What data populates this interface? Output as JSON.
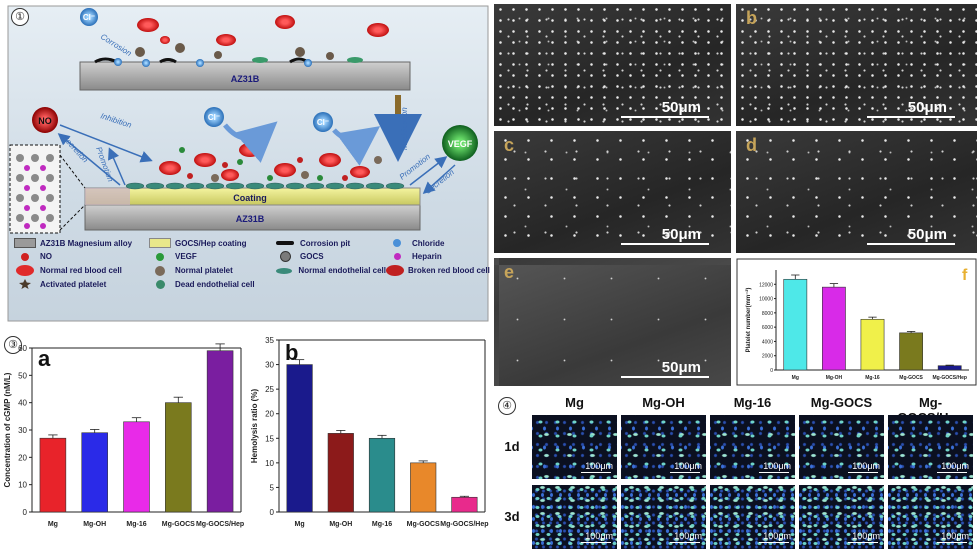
{
  "panel1": {
    "number": "①",
    "substrate_top": "AZ31B",
    "substrate_bottom": "AZ31B",
    "coating": "Coating",
    "ions": {
      "cl": "Cl⁻",
      "no": "NO",
      "vegf": "VEGF"
    },
    "arrows": {
      "corrosion": "Corrosion",
      "inhibition": "Inhibition",
      "secretion_left": "Secretion",
      "promotion_left": "Promotion",
      "modification": "Modification",
      "promotion_right": "Promotion",
      "secretion_right": "Secretion"
    },
    "legend": [
      {
        "label": "AZ31B Magnesium alloy",
        "symbol": "alloy"
      },
      {
        "label": "GOCS/Hep coating",
        "symbol": "coating"
      },
      {
        "label": "Corrosion pit",
        "symbol": "pit"
      },
      {
        "label": "Chloride",
        "symbol": "chloride"
      },
      {
        "label": "NO",
        "symbol": "no"
      },
      {
        "label": "VEGF",
        "symbol": "vegf"
      },
      {
        "label": "GOCS",
        "symbol": "gocs"
      },
      {
        "label": "Heparin",
        "symbol": "heparin"
      },
      {
        "label": "Normal red blood cell",
        "symbol": "rbc"
      },
      {
        "label": "Normal platelet",
        "symbol": "platelet"
      },
      {
        "label": "Normal endothelial cell",
        "symbol": "endo"
      },
      {
        "label": "Broken red blood cell",
        "symbol": "brokenrbc"
      },
      {
        "label": "Activated platelet",
        "symbol": "actplatelet"
      },
      {
        "label": "Dead endothelial cell",
        "symbol": "deadendo"
      }
    ]
  },
  "panel2": {
    "number": "②",
    "scale": "50μm",
    "images": [
      {
        "letter": "",
        "density": "dense"
      },
      {
        "letter": "b",
        "density": "dense"
      },
      {
        "letter": "c",
        "density": "sparse"
      },
      {
        "letter": "d",
        "density": "sparse"
      },
      {
        "letter": "e",
        "density": "veryfew"
      }
    ],
    "chart_f_letter": "f",
    "chart_f_tick_labels": [
      "0",
      "2000",
      "4000",
      "6000",
      "8000",
      "10000",
      "12000"
    ]
  },
  "panel3": {
    "number": "③",
    "chart_a_letter": "a",
    "chart_b_letter": "b"
  },
  "panel4": {
    "number": "④",
    "columns": [
      "Mg",
      "Mg-OH",
      "Mg-16",
      "Mg-GOCS",
      "Mg-GOCS/Hep"
    ],
    "rows": [
      "1d",
      "3d"
    ],
    "scale": "100μm"
  },
  "chart_data": [
    {
      "type": "bar",
      "letter": "a",
      "categories": [
        "Mg",
        "Mg-OH",
        "Mg-16",
        "Mg-GOCS",
        "Mg-GOCS/Hep"
      ],
      "values": [
        27,
        29,
        33,
        40,
        59
      ],
      "errors": [
        1.2,
        1.2,
        1.5,
        2,
        2.5
      ],
      "colors": [
        "#e8232a",
        "#2a2ae8",
        "#e82ae8",
        "#7a7a1e",
        "#7a1ea0"
      ],
      "ylabel": "Concentration of cGMP (nM/L)",
      "ylim": [
        0,
        60
      ],
      "yticks": [
        0,
        10,
        20,
        30,
        40,
        50,
        60
      ]
    },
    {
      "type": "bar",
      "letter": "b",
      "categories": [
        "Mg",
        "Mg-OH",
        "Mg-16",
        "Mg-GOCS",
        "Mg-GOCS/Hep"
      ],
      "values": [
        30,
        16,
        15,
        10,
        3
      ],
      "errors": [
        1,
        0.6,
        0.6,
        0.4,
        0.2
      ],
      "colors": [
        "#1a1a8c",
        "#8c1a1a",
        "#2a8c8c",
        "#e8882a",
        "#e82a8c"
      ],
      "ylabel": "Hemolysis ratio (%)",
      "ylim": [
        0,
        35
      ],
      "yticks": [
        0,
        5,
        10,
        15,
        20,
        25,
        30,
        35
      ]
    },
    {
      "type": "bar",
      "letter": "f",
      "categories": [
        "Mg",
        "Mg-OH",
        "Mg-16",
        "Mg-GOCS",
        "Mg-GOCS/Hep"
      ],
      "values": [
        12700,
        11600,
        7100,
        5200,
        600
      ],
      "errors": [
        600,
        500,
        300,
        200,
        80
      ],
      "colors": [
        "#4ee8e8",
        "#d82ae8",
        "#f0f04a",
        "#7a7a1e",
        "#1a1a8c"
      ],
      "ylabel": "Platelet number(mm⁻²)",
      "ylim": [
        0,
        14000
      ]
    }
  ]
}
